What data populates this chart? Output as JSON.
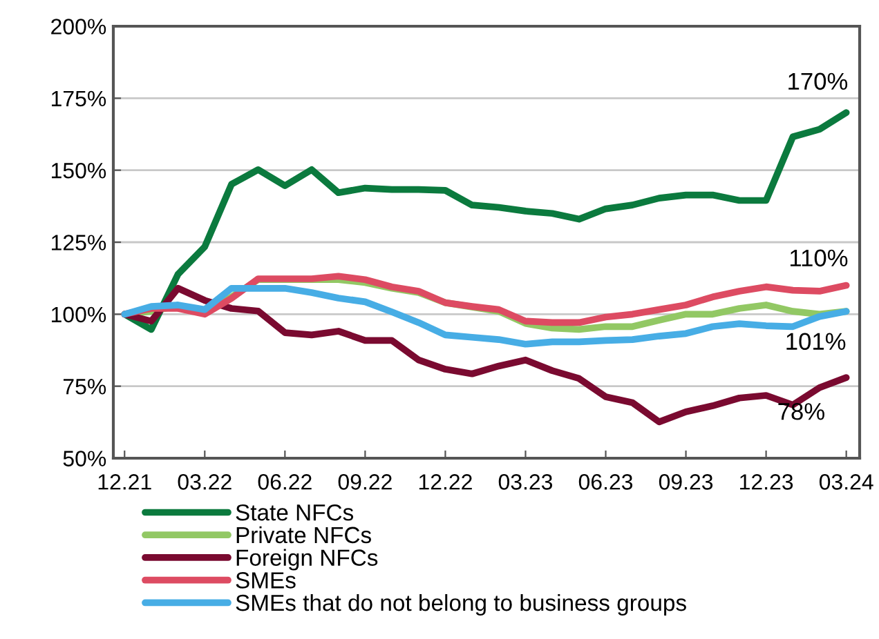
{
  "chart_data": {
    "type": "line",
    "categories": [
      "12.21",
      null,
      null,
      "03.22",
      null,
      null,
      "06.22",
      null,
      null,
      "09.22",
      null,
      null,
      "12.22",
      null,
      null,
      "03.23",
      null,
      null,
      "06.23",
      null,
      null,
      "09.23",
      null,
      null,
      "12.23",
      null,
      null,
      "03.24"
    ],
    "series": [
      {
        "name": "State NFCs",
        "color": "#0b7a3e",
        "values": [
          100,
          94.7,
          113.9,
          123.4,
          145.1,
          150.2,
          144.6,
          150.2,
          142.2,
          143.8,
          143.3,
          143.3,
          143,
          137.9,
          137.1,
          135.8,
          135,
          133,
          136.6,
          137.9,
          140.3,
          141.4,
          141.4,
          139.5,
          139.5,
          161.6,
          164.2,
          170
        ]
      },
      {
        "name": "Private NFCs",
        "color": "#92c864",
        "values": [
          100,
          101,
          103,
          101,
          106,
          112,
          112,
          112,
          112,
          111,
          109,
          107.5,
          104,
          102.5,
          101,
          96.8,
          95.2,
          94.7,
          95.7,
          95.7,
          97.9,
          100,
          100,
          102,
          103.2,
          101,
          100,
          101
        ]
      },
      {
        "name": "Foreign NFCs",
        "color": "#7a0a30",
        "values": [
          100,
          97.6,
          109,
          104.8,
          102,
          101.1,
          93.6,
          92.8,
          94.1,
          90.9,
          90.9,
          84.1,
          80.9,
          79.3,
          82,
          84.1,
          80.4,
          77.7,
          71.3,
          69.3,
          62.6,
          66.1,
          68.2,
          70.9,
          71.8,
          68.5,
          74.5,
          78
        ]
      },
      {
        "name": "SMEs",
        "color": "#dd4b62",
        "values": [
          100,
          102,
          102,
          100,
          105.5,
          112.3,
          112.3,
          112.3,
          113.2,
          112,
          109.5,
          108,
          104,
          102.7,
          101.6,
          97.6,
          97.1,
          97.1,
          99,
          100,
          101.6,
          103.2,
          106,
          108,
          109.5,
          108.3,
          108,
          110
        ]
      },
      {
        "name": "SMEs that do not belong to business groups",
        "color": "#47ade5",
        "values": [
          100,
          102.7,
          103.2,
          101.6,
          109,
          109,
          109,
          107.5,
          105.6,
          104.3,
          100.8,
          97.1,
          92.8,
          92,
          91.2,
          89.6,
          90.4,
          90.4,
          90.9,
          91.2,
          92.4,
          93.3,
          95.7,
          96.7,
          96,
          95.7,
          99.2,
          101
        ]
      }
    ],
    "ylim": [
      50,
      200
    ],
    "yticks": [
      {
        "value": 50,
        "label": "50%"
      },
      {
        "value": 75,
        "label": "75%"
      },
      {
        "value": 100,
        "label": "100%"
      },
      {
        "value": 125,
        "label": "125%"
      },
      {
        "value": 150,
        "label": "150%"
      },
      {
        "value": 175,
        "label": "175%"
      },
      {
        "value": 200,
        "label": "200%"
      }
    ],
    "grid": "y",
    "legend": "bottom",
    "marker": "none",
    "line_style": "solid",
    "annotations": [
      {
        "text": "170%",
        "x": "03.24",
        "y": 170
      },
      {
        "text": "110%",
        "x": "03.24",
        "y": 110
      },
      {
        "text": "101%",
        "x": "03.24",
        "y": 101
      },
      {
        "text": "78%",
        "x": "03.24",
        "y": 78
      }
    ]
  }
}
